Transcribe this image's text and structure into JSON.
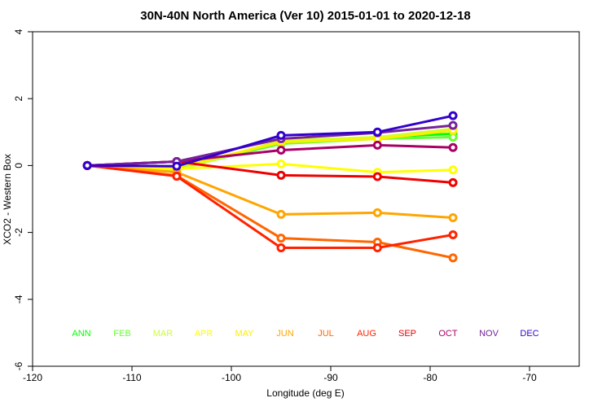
{
  "chart_data": {
    "type": "line",
    "title": "30N-40N North America (Ver 10)   2015-01-01 to 2020-12-18",
    "x_label": "Longitude (deg E)",
    "y_label": "XCO2 - Western Box",
    "x": [
      -114.5,
      -105.5,
      -95,
      -85.3,
      -77.7
    ],
    "series": [
      {
        "name": "ANN",
        "color": "#00ff00",
        "values": [
          0,
          -0.05,
          0.68,
          0.85,
          0.95
        ]
      },
      {
        "name": "FEB",
        "color": "#66ff33",
        "values": [
          0,
          -0.1,
          0.65,
          0.8,
          0.85
        ]
      },
      {
        "name": "MAR",
        "color": "#ccff33",
        "values": [
          0,
          -0.15,
          0.75,
          0.85,
          1.1
        ]
      },
      {
        "name": "APR",
        "color": "#ffff00",
        "values": [
          0,
          -0.1,
          0.05,
          -0.2,
          -0.13
        ]
      },
      {
        "name": "MAY",
        "color": "#ffee00",
        "values": [
          0,
          -0.05,
          0.7,
          0.8,
          1.05
        ]
      },
      {
        "name": "JUN",
        "color": "#ffa500",
        "values": [
          0,
          -0.2,
          -1.46,
          -1.41,
          -1.56
        ]
      },
      {
        "name": "JUL",
        "color": "#ff6600",
        "values": [
          0,
          -0.3,
          -2.17,
          -2.29,
          -2.76
        ]
      },
      {
        "name": "AUG",
        "color": "#ff2200",
        "values": [
          0,
          -0.32,
          -2.46,
          -2.46,
          -2.07
        ]
      },
      {
        "name": "SEP",
        "color": "#ee0000",
        "values": [
          0,
          0.12,
          -0.29,
          -0.33,
          -0.51
        ]
      },
      {
        "name": "OCT",
        "color": "#aa0066",
        "values": [
          0,
          0.12,
          0.46,
          0.61,
          0.54
        ]
      },
      {
        "name": "NOV",
        "color": "#772299",
        "values": [
          0,
          0.12,
          0.8,
          0.98,
          1.2
        ]
      },
      {
        "name": "DEC",
        "color": "#3300cc",
        "values": [
          0,
          -0.02,
          0.9,
          1.0,
          1.49
        ]
      }
    ],
    "xlim": [
      -120,
      -65
    ],
    "xticks": [
      -120,
      -110,
      -100,
      -90,
      -80,
      -70
    ],
    "ylim": [
      -6,
      4
    ],
    "yticks": [
      -6,
      -4,
      -2,
      0,
      2,
      4
    ]
  }
}
